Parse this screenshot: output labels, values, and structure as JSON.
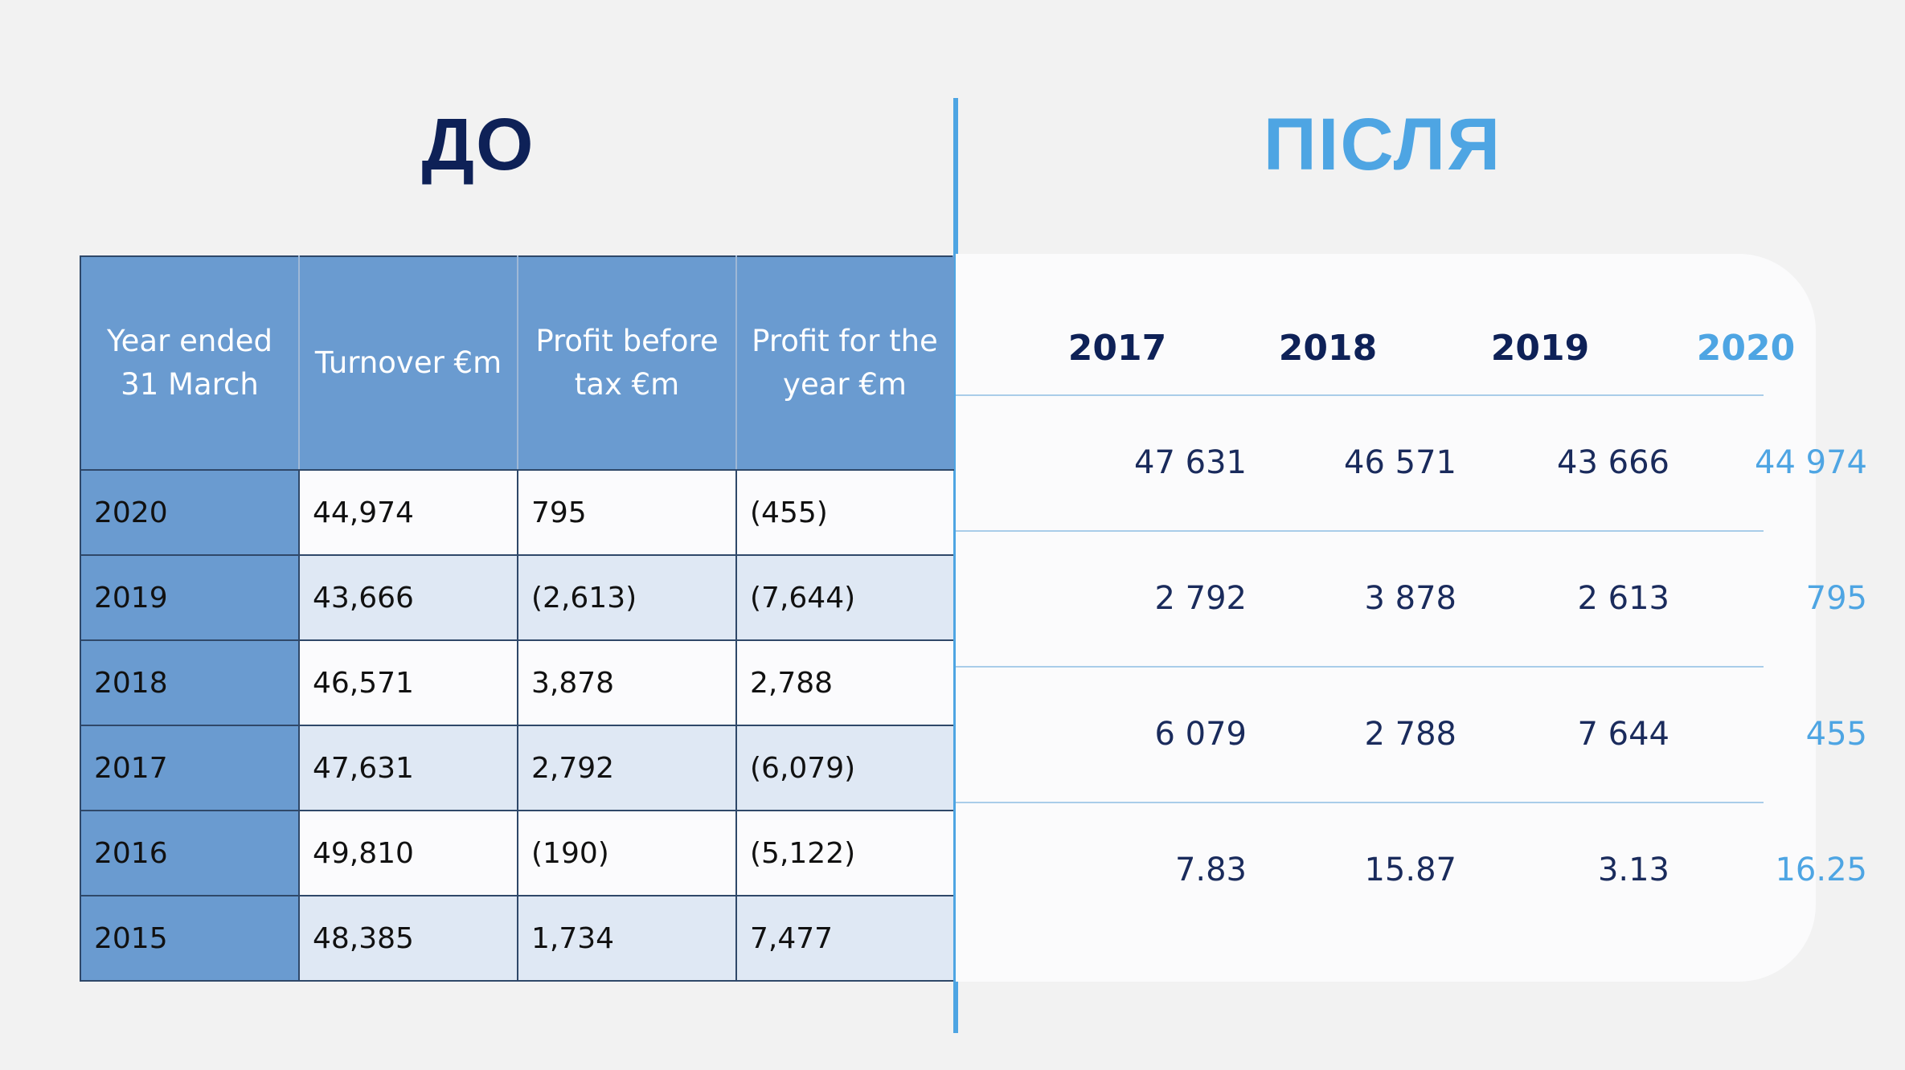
{
  "headings": {
    "before": "ДО",
    "after": "ПІСЛЯ"
  },
  "colors": {
    "navy": "#0e2157",
    "accent_blue": "#4ea5e3",
    "header_blue": "#6a9bd0",
    "row_stripe": "#dfe8f4"
  },
  "old_table": {
    "headers": [
      "Year ended 31 March",
      "Turnover €m",
      "Profit before tax €m",
      "Profit for the year €m"
    ],
    "header_lines": [
      [
        "Year ended",
        "31 March"
      ],
      [
        "Turnover €m"
      ],
      [
        "Profit before",
        "tax €m"
      ],
      [
        "Profit for the",
        "year €m"
      ]
    ],
    "rows": [
      [
        "2020",
        "44,974",
        "795",
        "(455)"
      ],
      [
        "2019",
        "43,666",
        "(2,613)",
        "(7,644)"
      ],
      [
        "2018",
        "46,571",
        "3,878",
        "2,788"
      ],
      [
        "2017",
        "47,631",
        "2,792",
        "(6,079)"
      ],
      [
        "2016",
        "49,810",
        "(190)",
        "(5,122)"
      ],
      [
        "2015",
        "48,385",
        "1,734",
        "7,477"
      ]
    ]
  },
  "new_table": {
    "years": [
      "2017",
      "2018",
      "2019",
      "2020"
    ],
    "rows": [
      [
        "47 631",
        "46 571",
        "43 666",
        "44 974"
      ],
      [
        "2 792",
        "3 878",
        "2 613",
        "795"
      ],
      [
        "6 079",
        "2 788",
        "7 644",
        "455"
      ],
      [
        "7.83",
        "15.87",
        "3.13",
        "16.25"
      ]
    ]
  }
}
